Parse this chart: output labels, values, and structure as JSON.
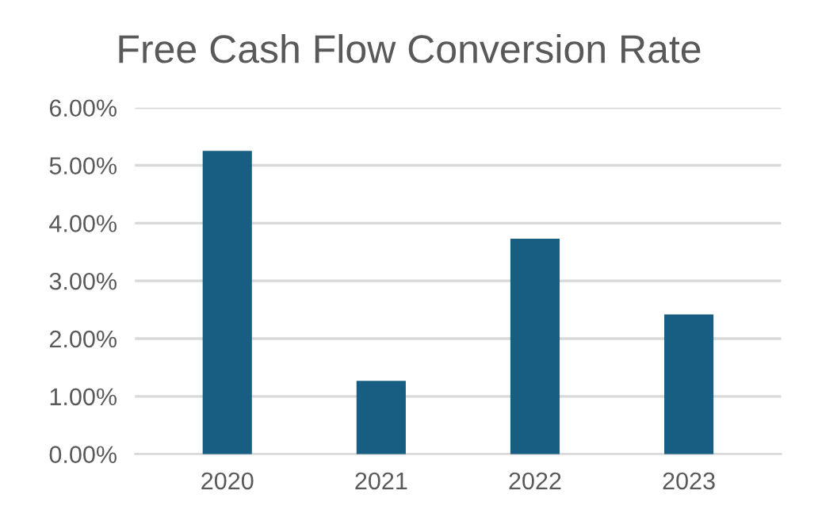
{
  "chart_data": {
    "type": "bar",
    "title": "Free Cash Flow Conversion Rate",
    "categories": [
      "2020",
      "2021",
      "2022",
      "2023"
    ],
    "values": [
      5.25,
      1.27,
      3.73,
      2.42
    ],
    "color": "#175e82",
    "ylim": [
      0,
      6
    ],
    "yticks": [
      {
        "value": 0,
        "label": "0.00%"
      },
      {
        "value": 1,
        "label": "1.00%"
      },
      {
        "value": 2,
        "label": "2.00%"
      },
      {
        "value": 3,
        "label": "3.00%"
      },
      {
        "value": 4,
        "label": "4.00%"
      },
      {
        "value": 5,
        "label": "5.00%"
      },
      {
        "value": 6,
        "label": "6.00%"
      }
    ],
    "grid": "y"
  }
}
